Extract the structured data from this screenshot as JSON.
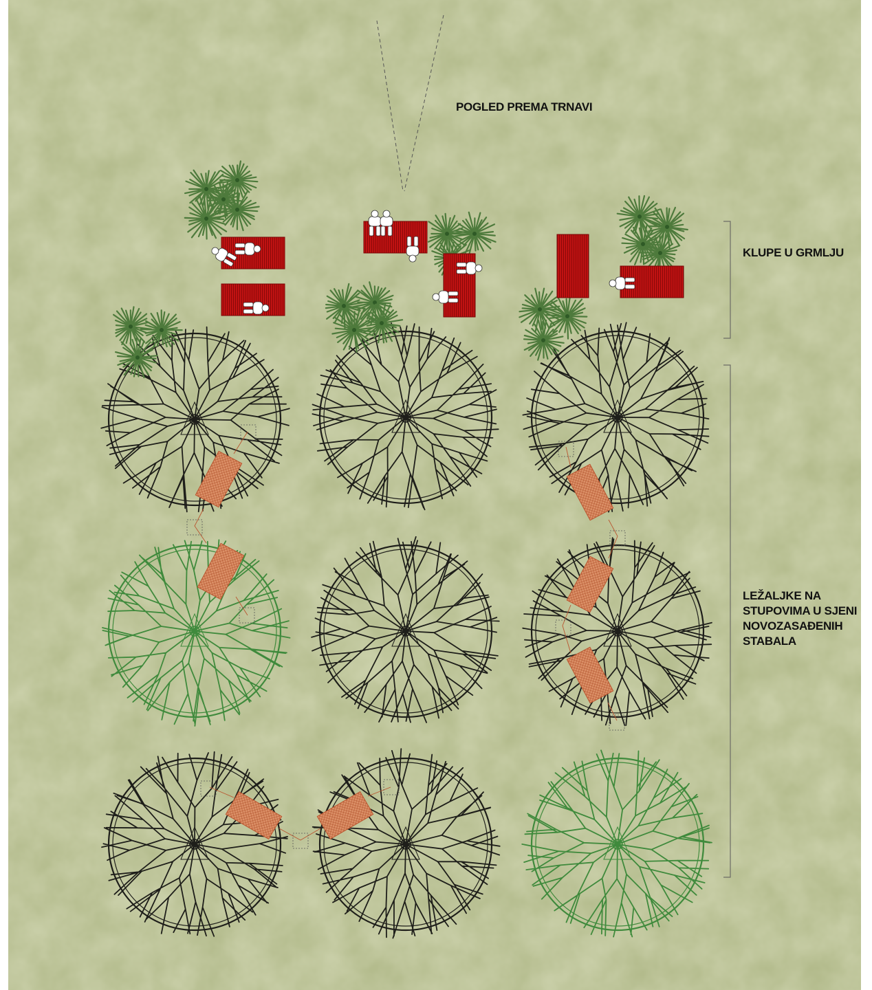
{
  "labels": {
    "view": "POGLED PREMA TRNAVI",
    "benches": "KLUPE U GRMLJU",
    "loungers": [
      "LEŽALJKE NA",
      "STUPOVIMA U SJENI",
      "NOVOZASAĐENIH",
      "STABALA"
    ]
  },
  "colors": {
    "ground": "#b3bb8c",
    "ground_edge": "#ffffff",
    "tree_black": "#1e1e1a",
    "tree_green": "#3f8a3c",
    "bench_red": "#b00d0d",
    "shrub_green": "#4e7a3c",
    "lounger_fill": "#d98a5f",
    "lounger_line": "#b9552f"
  },
  "icons": {
    "tree": "tree-canopy-icon",
    "shrub": "shrub-icon",
    "bench": "bench-icon",
    "person": "seated-person-icon",
    "lounger": "lounger-icon"
  }
}
